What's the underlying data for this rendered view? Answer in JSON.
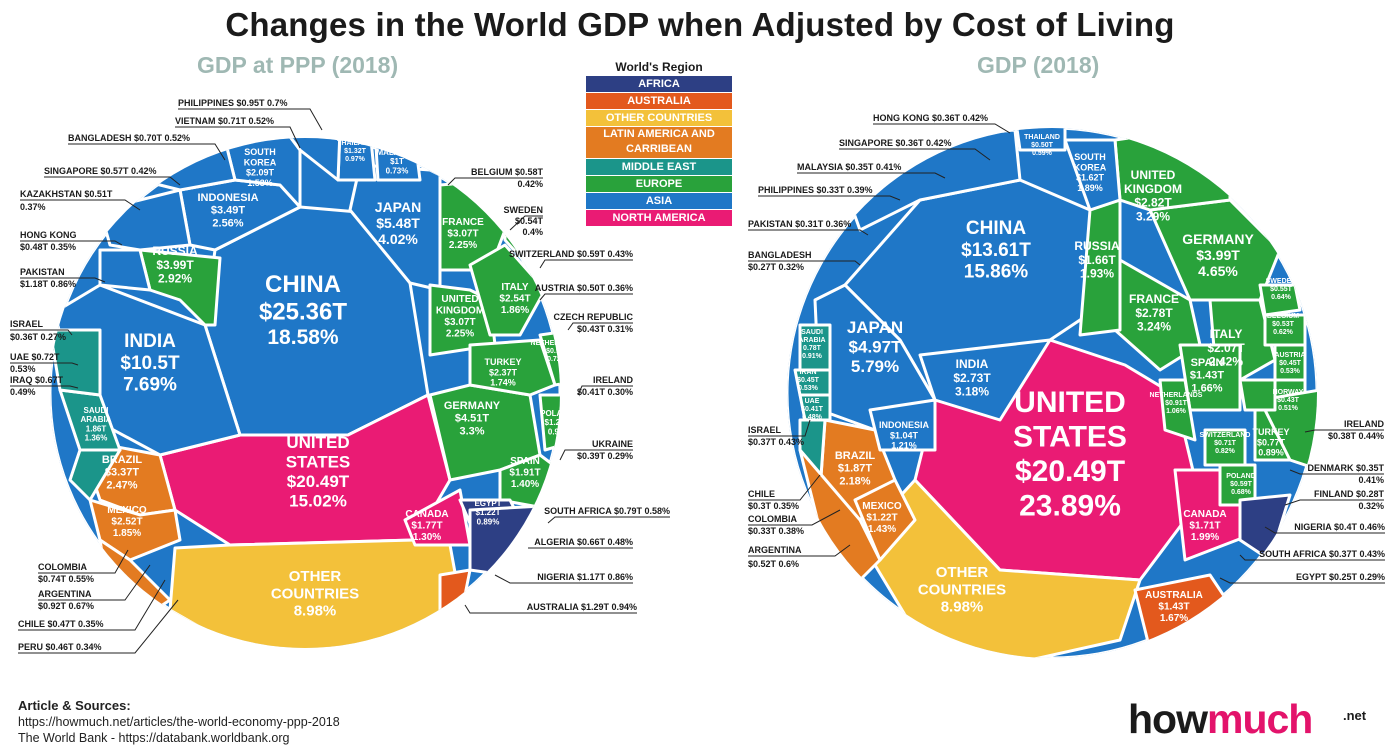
{
  "title": "Changes in the World GDP when Adjusted by Cost of Living",
  "legend": {
    "title": "World's Region",
    "items": [
      {
        "label": "AFRICA",
        "color": "#2d3f84"
      },
      {
        "label": "AUSTRALIA",
        "color": "#e3591d"
      },
      {
        "label": "OTHER COUNTRIES",
        "color": "#f3c13a"
      },
      {
        "label": "LATIN AMERICA AND CARRIBEAN",
        "color": "#e37b21"
      },
      {
        "label": "MIDDLE EAST",
        "color": "#1b958a"
      },
      {
        "label": "EUROPE",
        "color": "#29a23b"
      },
      {
        "label": "ASIA",
        "color": "#1f77c7"
      },
      {
        "label": "NORTH AMERICA",
        "color": "#ea1b74"
      }
    ]
  },
  "sources": {
    "title": "Article & Sources:",
    "lines": [
      "https://howmuch.net/articles/the-world-economy-ppp-2018",
      "The World Bank - https://databank.worldbank.org"
    ]
  },
  "logo": {
    "text_a": "how",
    "text_b": "much",
    "suffix": ".net"
  },
  "chart_data": [
    {
      "type": "voronoi-treemap",
      "title": "GDP at PPP (2018)",
      "items": [
        {
          "name": "CHINA",
          "value": "$25.36T",
          "share": "18.58%",
          "region": "ASIA"
        },
        {
          "name": "UNITED STATES",
          "value": "$20.49T",
          "share": "15.02%",
          "region": "NORTH AMERICA"
        },
        {
          "name": "INDIA",
          "value": "$10.5T",
          "share": "7.69%",
          "region": "ASIA"
        },
        {
          "name": "OTHER COUNTRIES",
          "share": "8.98%",
          "region": "OTHER COUNTRIES"
        },
        {
          "name": "JAPAN",
          "value": "$5.48T",
          "share": "4.02%",
          "region": "ASIA"
        },
        {
          "name": "GERMANY",
          "value": "$4.51T",
          "share": "3.3%",
          "region": "EUROPE"
        },
        {
          "name": "RUSSIA",
          "value": "$3.99T",
          "share": "2.92%",
          "region": "EUROPE"
        },
        {
          "name": "INDONESIA",
          "value": "$3.49T",
          "share": "2.56%",
          "region": "ASIA"
        },
        {
          "name": "BRAZIL",
          "value": "$3.37T",
          "share": "2.47%",
          "region": "LATIN AMERICA AND CARRIBEAN"
        },
        {
          "name": "FRANCE",
          "value": "$3.07T",
          "share": "2.25%",
          "region": "EUROPE"
        },
        {
          "name": "UNITED KINGDOM",
          "value": "$3.07T",
          "share": "2.25%",
          "region": "EUROPE"
        },
        {
          "name": "ITALY",
          "value": "$2.54T",
          "share": "1.86%",
          "region": "EUROPE"
        },
        {
          "name": "MEXICO",
          "value": "$2.52T",
          "share": "1.85%",
          "region": "LATIN AMERICA AND CARRIBEAN"
        },
        {
          "name": "TURKEY",
          "value": "$2.37T",
          "share": "1.74%",
          "region": "EUROPE"
        },
        {
          "name": "SOUTH KOREA",
          "value": "$2.09T",
          "share": "1.53%",
          "region": "ASIA"
        },
        {
          "name": "SPAIN",
          "value": "$1.91T",
          "share": "1.40%",
          "region": "EUROPE"
        },
        {
          "name": "SAUDI ARABIA",
          "value": "1.86T",
          "share": "1.36%",
          "region": "MIDDLE EAST"
        },
        {
          "name": "CANADA",
          "value": "$1.77T",
          "share": "1.30%",
          "region": "NORTH AMERICA"
        },
        {
          "name": "EGYPT",
          "value": "$1.22T",
          "share": "0.89%",
          "region": "AFRICA"
        },
        {
          "name": "POLAND",
          "value": "$1.23T",
          "share": "0.9%",
          "region": "EUROPE"
        },
        {
          "name": "THAILAND",
          "value": "$1.32T",
          "share": "0.97%",
          "region": "ASIA"
        },
        {
          "name": "MALAYSIA",
          "value": "$1T",
          "share": "0.73%",
          "region": "ASIA"
        },
        {
          "name": "NETHERLANDS",
          "value": "$0.98T",
          "share": "0.72%",
          "region": "EUROPE"
        }
      ],
      "callouts_left": [
        "PHILIPPINES $0.95T  0.7%",
        "VIETNAM $0.71T  0.52%",
        "BANGLADESH $0.70T  0.52%",
        "SINGAPORE $0.57T  0.42%",
        "KAZAKHSTAN $0.51T",
        "0.37%",
        "HONG KONG",
        "$0.48T  0.35%",
        "PAKISTAN",
        "$1.18T  0.86%",
        "ISRAEL",
        "$0.36T  0.27%",
        "UAE $0.72T",
        "0.53%",
        "IRAQ $0.67T",
        "0.49%",
        "COLOMBIA",
        "$0.74T  0.55%",
        "ARGENTINA",
        "$0.92T  0.67%",
        "CHILE $0.47T  0.35%",
        "PERU $0.46T  0.34%"
      ],
      "callouts_right": [
        "BELGIUM $0.58T",
        "0.42%",
        "SWEDEN",
        "$0.54T",
        "0.4%",
        "SWITZERLAND $0.59T  0.43%",
        "AUSTRIA $0.50T  0.36%",
        "CZECH REPUBLIC",
        "$0.43T  0.31%",
        "IRELAND",
        "$0.41T  0.30%",
        "UKRAINE",
        "$0.39T  0.29%",
        "SOUTH AFRICA $0.79T  0.58%",
        "ALGERIA $0.66T  0.48%",
        "NIGERIA $1.17T  0.86%",
        "AUSTRALIA $1.29T  0.94%"
      ]
    },
    {
      "type": "voronoi-treemap",
      "title": "GDP (2018)",
      "items": [
        {
          "name": "UNITED STATES",
          "value": "$20.49T",
          "share": "23.89%",
          "region": "NORTH AMERICA"
        },
        {
          "name": "CHINA",
          "value": "$13.61T",
          "share": "15.86%",
          "region": "ASIA"
        },
        {
          "name": "OTHER COUNTRIES",
          "share": "8.98%",
          "region": "OTHER COUNTRIES"
        },
        {
          "name": "JAPAN",
          "value": "$4.97T",
          "share": "5.79%",
          "region": "ASIA"
        },
        {
          "name": "GERMANY",
          "value": "$3.99T",
          "share": "4.65%",
          "region": "EUROPE"
        },
        {
          "name": "UNITED KINGDOM",
          "value": "$2.82T",
          "share": "3.29%",
          "region": "EUROPE"
        },
        {
          "name": "FRANCE",
          "value": "$2.78T",
          "share": "3.24%",
          "region": "EUROPE"
        },
        {
          "name": "INDIA",
          "value": "$2.73T",
          "share": "3.18%",
          "region": "ASIA"
        },
        {
          "name": "ITALY",
          "value": "$2.07T",
          "share": "2.42%",
          "region": "EUROPE"
        },
        {
          "name": "BRAZIL",
          "value": "$1.87T",
          "share": "2.18%",
          "region": "LATIN AMERICA AND CARRIBEAN"
        },
        {
          "name": "CANADA",
          "value": "$1.71T",
          "share": "1.99%",
          "region": "NORTH AMERICA"
        },
        {
          "name": "RUSSIA",
          "value": "$1.66T",
          "share": "1.93%",
          "region": "EUROPE"
        },
        {
          "name": "SOUTH KOREA",
          "value": "$1.62T",
          "share": "1.89%",
          "region": "ASIA"
        },
        {
          "name": "AUSTRALIA",
          "value": "$1.43T",
          "share": "1.67%",
          "region": "AUSTRALIA"
        },
        {
          "name": "SPAIN",
          "value": "$1.43T",
          "share": "1.66%",
          "region": "EUROPE"
        },
        {
          "name": "MEXICO",
          "value": "$1.22T",
          "share": "1.43%",
          "region": "LATIN AMERICA AND CARRIBEAN"
        },
        {
          "name": "INDONESIA",
          "value": "$1.04T",
          "share": "1.21%",
          "region": "ASIA"
        },
        {
          "name": "NETHERLANDS",
          "value": "$0.91T",
          "share": "1.06%",
          "region": "EUROPE"
        },
        {
          "name": "SAUDI ARABIA",
          "value": "0.78T",
          "share": "0.91%",
          "region": "MIDDLE EAST"
        },
        {
          "name": "TURKEY",
          "value": "$0.77T",
          "share": "0.89%",
          "region": "EUROPE"
        },
        {
          "name": "SWITZERLAND",
          "value": "$0.71T",
          "share": "0.82%",
          "region": "EUROPE"
        },
        {
          "name": "POLAND",
          "value": "$0.59T",
          "share": "0.68%",
          "region": "EUROPE"
        },
        {
          "name": "SWEDEN",
          "value": "$0.55T",
          "share": "0.64%",
          "region": "EUROPE"
        },
        {
          "name": "BELGIUM",
          "value": "$0.53T",
          "share": "0.62%",
          "region": "EUROPE"
        },
        {
          "name": "IRAN",
          "value": "$0.45T",
          "share": "0.53%",
          "region": "MIDDLE EAST"
        },
        {
          "name": "AUSTRIA",
          "value": "$0.45T",
          "share": "0.53%",
          "region": "EUROPE"
        },
        {
          "name": "NORWAY",
          "value": "$0.43T",
          "share": "0.51%",
          "region": "EUROPE"
        },
        {
          "name": "UAE",
          "value": "$0.41T",
          "share": "0.48%",
          "region": "MIDDLE EAST"
        },
        {
          "name": "THAILAND",
          "value": "$0.50T",
          "share": "0.59%",
          "region": "ASIA"
        }
      ],
      "callouts_left": [
        "HONG KONG $0.36T  0.42%",
        "SINGAPORE $0.36T  0.42%",
        "MALAYSIA $0.35T  0.41%",
        "PHILIPPINES $0.33T  0.39%",
        "PAKISTAN $0.31T  0.36%",
        "BANGLADESH",
        "$0.27T  0.32%",
        "ISRAEL",
        "$0.37T  0.43%",
        "CHILE",
        "$0.3T  0.35%",
        "COLOMBIA",
        "$0.33T  0.38%",
        "ARGENTINA",
        "$0.52T  0.6%"
      ],
      "callouts_right": [
        "IRELAND",
        "$0.38T  0.44%",
        "DENMARK $0.35T",
        "0.41%",
        "FINLAND $0.28T",
        "0.32%",
        "NIGERIA $0.4T  0.46%",
        "SOUTH AFRICA $0.37T  0.43%",
        "EGYPT $0.25T  0.29%"
      ]
    }
  ]
}
